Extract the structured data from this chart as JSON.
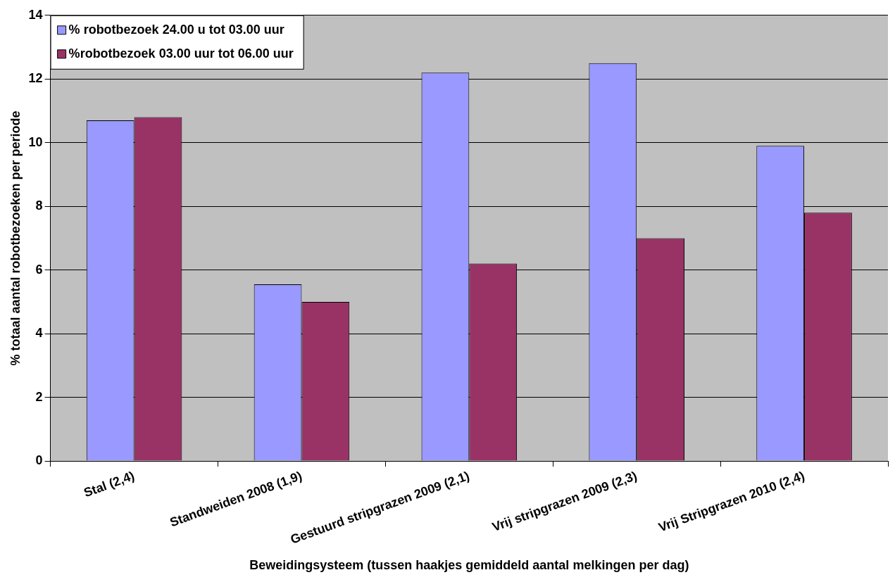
{
  "chart_data": {
    "type": "bar",
    "xlabel": "Beweidingsysteem (tussen haakjes gemiddeld aantal melkingen per dag)",
    "ylabel": "% totaal aantal robotbezoeken per periode",
    "categories": [
      "Stal (2,4)",
      "Standweiden 2008 (1,9)",
      "Gestuurd stripgrazen 2009 (2,1)",
      "Vrij stripgrazen 2009 (2,3)",
      "Vrij Stripgrazen 2010 (2,4)"
    ],
    "series": [
      {
        "name": "% robotbezoek 24.00 u tot 03.00 uur",
        "color": "#9999ff",
        "values": [
          10.7,
          5.55,
          12.2,
          12.5,
          9.9
        ]
      },
      {
        "name": "%robotbezoek 03.00 uur tot 06.00 uur",
        "color": "#993366",
        "values": [
          10.8,
          5.0,
          6.2,
          7.0,
          7.8
        ]
      }
    ],
    "ylim": [
      0,
      14
    ],
    "yticks": [
      0,
      2,
      4,
      6,
      8,
      10,
      12,
      14
    ],
    "grid": "y",
    "legend": "top left"
  }
}
